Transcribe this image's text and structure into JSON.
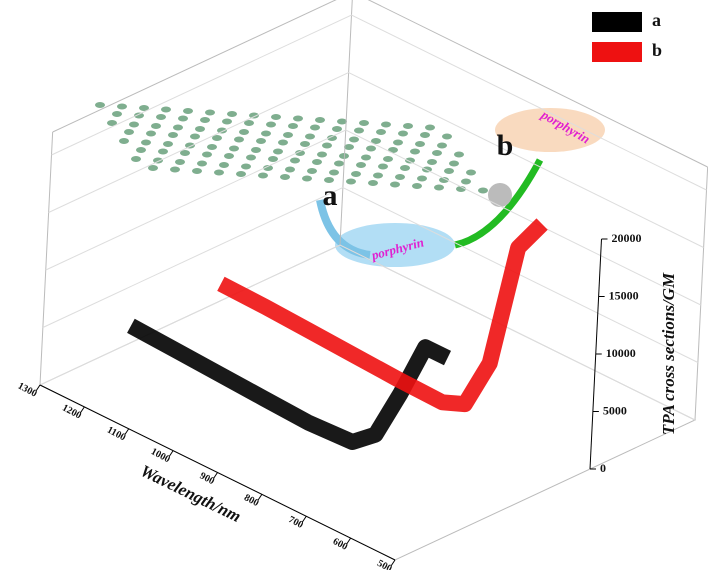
{
  "chart_data": {
    "type": "ribbon3d",
    "x_label": "Wavelength/nm",
    "y_label": "TPA cross sections/GM",
    "x": [
      1300,
      1200,
      1100,
      1000,
      900,
      800,
      750,
      700,
      650,
      600
    ],
    "series": [
      {
        "name": "a",
        "color": "#000000",
        "values": [
          1500,
          1300,
          1100,
          900,
          700,
          900,
          2500,
          7000,
          12000,
          12000
        ]
      },
      {
        "name": "b",
        "color": "#ee1111",
        "values": [
          1500,
          1400,
          1200,
          1000,
          800,
          700,
          1500,
          6000,
          17000,
          20000
        ]
      }
    ],
    "xlim": [
      1300,
      500
    ],
    "xticks": [
      1300,
      1200,
      1100,
      1000,
      900,
      800,
      700,
      600,
      500
    ],
    "ylim": [
      0,
      20000
    ],
    "yticks": [
      0,
      5000,
      10000,
      15000,
      20000
    ],
    "grid": true,
    "legend": "top-right",
    "annotations": [
      "a",
      "porphyrin",
      "b",
      "porphyrin"
    ]
  }
}
